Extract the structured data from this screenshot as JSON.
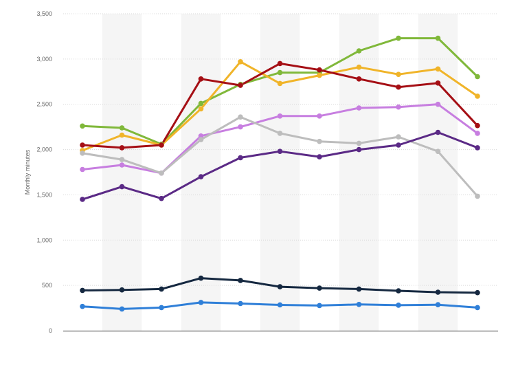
{
  "chart_data": {
    "type": "line",
    "title": "",
    "ylabel": "Monthly minutes",
    "xlabel": "",
    "ylim": [
      0,
      3500
    ],
    "yticks": [
      0,
      500,
      1000,
      1500,
      2000,
      2500,
      3000,
      3500
    ],
    "ytick_labels": [
      "0",
      "500",
      "1,000",
      "1,500",
      "2,000",
      "2,500",
      "3,000",
      "3,500"
    ],
    "x": [
      1,
      2,
      3,
      4,
      5,
      6,
      7,
      8,
      9,
      10,
      11
    ],
    "grid": true,
    "legend": "none",
    "series": [
      {
        "color": "#80b83a",
        "values": [
          2260,
          2240,
          2060,
          2510,
          2720,
          2850,
          2850,
          3090,
          3230,
          3230,
          2805
        ]
      },
      {
        "color": "#f0b429",
        "values": [
          1990,
          2160,
          2050,
          2450,
          2970,
          2730,
          2820,
          2910,
          2830,
          2890,
          2590
        ]
      },
      {
        "color": "#a50f15",
        "values": [
          2050,
          2020,
          2050,
          2780,
          2710,
          2950,
          2880,
          2780,
          2690,
          2735,
          2265
        ]
      },
      {
        "color": "#c77ee0",
        "values": [
          1780,
          1830,
          1740,
          2150,
          2250,
          2370,
          2370,
          2460,
          2470,
          2500,
          2180
        ]
      },
      {
        "color": "#bdbdbd",
        "values": [
          1960,
          1890,
          1740,
          2110,
          2360,
          2180,
          2090,
          2070,
          2140,
          1980,
          1485
        ]
      },
      {
        "color": "#5b2a86",
        "values": [
          1450,
          1590,
          1460,
          1700,
          1910,
          1980,
          1920,
          2000,
          2050,
          2190,
          2020
        ]
      },
      {
        "color": "#152840",
        "values": [
          445,
          450,
          460,
          580,
          555,
          485,
          470,
          460,
          440,
          425,
          420
        ]
      },
      {
        "color": "#2f7fd8",
        "values": [
          268,
          240,
          255,
          312,
          300,
          285,
          278,
          290,
          282,
          287,
          255
        ]
      }
    ]
  }
}
